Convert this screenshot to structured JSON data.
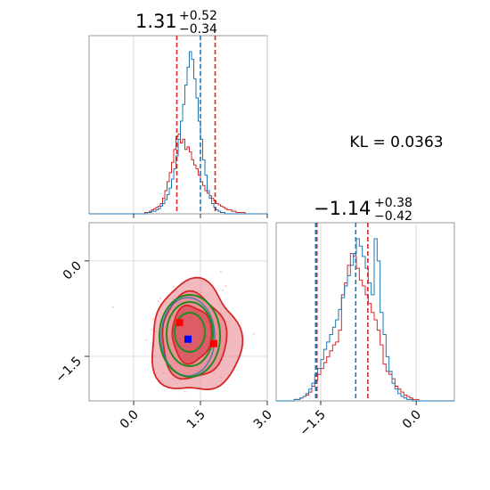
{
  "chart_data": {
    "type": "corner",
    "x_param": {
      "title_value": "1.31",
      "title_plus": "+0.52",
      "title_minus": "−0.34",
      "lim": [
        -1.0,
        3.0
      ],
      "ticks": [
        0.0,
        1.5,
        3.0
      ],
      "tick_labels": [
        "0.0",
        "1.5",
        "3.0"
      ],
      "quantiles_red": [
        0.97,
        1.83
      ],
      "quantiles_blue": [
        1.5
      ],
      "hist_blue": [
        0,
        0,
        0,
        0,
        0,
        0,
        0,
        0,
        0,
        0,
        0,
        0,
        0,
        0,
        0,
        0,
        0,
        0,
        0,
        0,
        0,
        0,
        0,
        0,
        0,
        0,
        1,
        1,
        2,
        2,
        3,
        4,
        6,
        8,
        11,
        15,
        20,
        27,
        35,
        45,
        58,
        72,
        85,
        100,
        114,
        126,
        120,
        105,
        90,
        72,
        58,
        42,
        30,
        18,
        12,
        8,
        5,
        3,
        2,
        1,
        1,
        0,
        0,
        0,
        0,
        0,
        0,
        0,
        0,
        0,
        0,
        0,
        0,
        0,
        0,
        0,
        0,
        0,
        0,
        0
      ],
      "hist_red": [
        0,
        0,
        0,
        0,
        0,
        0,
        0,
        0,
        0,
        0,
        0,
        0,
        0,
        0,
        0,
        0,
        0,
        0,
        0,
        0,
        0,
        0,
        0,
        0,
        0,
        1,
        1,
        2,
        3,
        4,
        5,
        6,
        8,
        12,
        18,
        25,
        32,
        40,
        50,
        60,
        62,
        55,
        58,
        50,
        52,
        48,
        42,
        38,
        35,
        30,
        25,
        22,
        18,
        16,
        14,
        12,
        10,
        8,
        7,
        6,
        5,
        4,
        3,
        3,
        2,
        2,
        1,
        1,
        1,
        1,
        0,
        0,
        0,
        0,
        0,
        0,
        0,
        0,
        0,
        0
      ]
    },
    "y_param": {
      "title_value": "−1.14",
      "title_plus": "+0.38",
      "title_minus": "−0.42",
      "lim": [
        -2.2,
        0.6
      ],
      "ticks": [
        -1.5,
        0.0
      ],
      "tick_labels": [
        "−1.5",
        "0.0"
      ],
      "quantiles_red": [
        -1.56,
        -0.76
      ],
      "quantiles_blue": [
        -1.58,
        -0.95
      ],
      "hist_blue": [
        0,
        0,
        0,
        0,
        0,
        0,
        1,
        1,
        2,
        3,
        5,
        8,
        12,
        18,
        22,
        28,
        35,
        40,
        45,
        50,
        55,
        62,
        70,
        78,
        85,
        92,
        100,
        110,
        105,
        98,
        90,
        80,
        72,
        110,
        95,
        60,
        45,
        30,
        20,
        12,
        8,
        5,
        3,
        2,
        1,
        1,
        0,
        0,
        0,
        0,
        0,
        0,
        0,
        0,
        0,
        0,
        0,
        0,
        0,
        0
      ],
      "hist_red": [
        0,
        0,
        0,
        0,
        0,
        0,
        1,
        1,
        2,
        3,
        4,
        6,
        10,
        14,
        18,
        22,
        26,
        30,
        34,
        38,
        40,
        48,
        72,
        80,
        92,
        100,
        98,
        90,
        82,
        78,
        72,
        66,
        60,
        55,
        48,
        38,
        25,
        20,
        18,
        15,
        10,
        8,
        6,
        4,
        3,
        2,
        1,
        1,
        0,
        0,
        0,
        0,
        0,
        0,
        0,
        0,
        0,
        0,
        0,
        0
      ]
    },
    "kl_text": "KL = 0.0363",
    "points": [
      {
        "x": 1.03,
        "y": -0.97,
        "color": "#ff0000"
      },
      {
        "x": 1.22,
        "y": -1.23,
        "color": "#0000ff"
      },
      {
        "x": 1.8,
        "y": -1.3,
        "color": "#ff0000"
      }
    ],
    "grid": true,
    "colors": {
      "blue": "#1f77b4",
      "red": "#d62728",
      "green": "#228b22",
      "fill_red": "#e8828a"
    }
  }
}
